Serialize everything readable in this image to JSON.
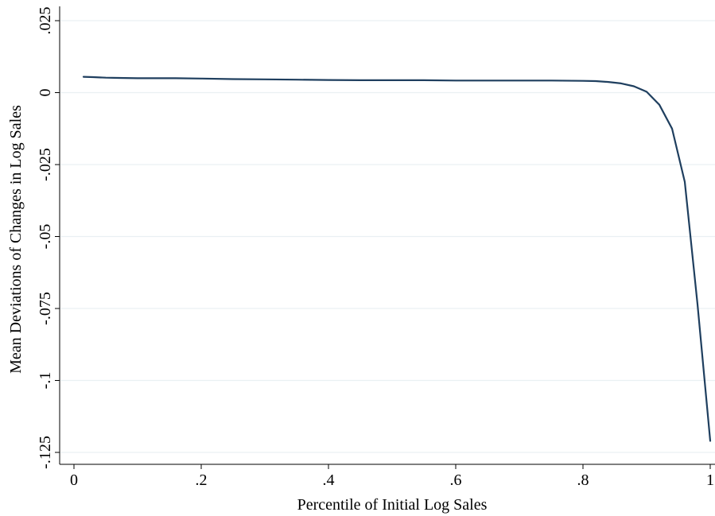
{
  "chart_data": {
    "type": "line",
    "title": "",
    "xlabel": "Percentile of Initial Log Sales",
    "ylabel": "Mean Deviations of Changes in Log Sales",
    "xlim": [
      0,
      1
    ],
    "ylim": [
      -0.125,
      0.025
    ],
    "x_ticks": [
      0,
      0.2,
      0.4,
      0.6,
      0.8,
      1
    ],
    "x_tick_labels": [
      "0",
      ".2",
      ".4",
      ".6",
      ".8",
      "1"
    ],
    "y_ticks": [
      -0.125,
      -0.1,
      -0.075,
      -0.05,
      -0.025,
      0,
      0.025
    ],
    "y_tick_labels": [
      "-.125",
      "-.1",
      "-.075",
      "-.05",
      "-.025",
      "0",
      ".025"
    ],
    "grid": "horizontal",
    "legend": "none",
    "series": [
      {
        "color": "#1f3f5f",
        "x": [
          0.015,
          0.03,
          0.05,
          0.07,
          0.1,
          0.13,
          0.16,
          0.2,
          0.25,
          0.3,
          0.35,
          0.4,
          0.45,
          0.5,
          0.55,
          0.6,
          0.65,
          0.7,
          0.75,
          0.8,
          0.82,
          0.84,
          0.86,
          0.88,
          0.9,
          0.92,
          0.94,
          0.96,
          0.98,
          1.0
        ],
        "y": [
          0.0055,
          0.0054,
          0.0052,
          0.0051,
          0.005,
          0.005,
          0.005,
          0.0049,
          0.0047,
          0.0046,
          0.0045,
          0.0044,
          0.0043,
          0.0043,
          0.0043,
          0.0042,
          0.0042,
          0.0042,
          0.0042,
          0.0041,
          0.004,
          0.0037,
          0.0032,
          0.0022,
          0.0003,
          -0.0042,
          -0.0125,
          -0.031,
          -0.0735,
          -0.121
        ]
      }
    ]
  }
}
